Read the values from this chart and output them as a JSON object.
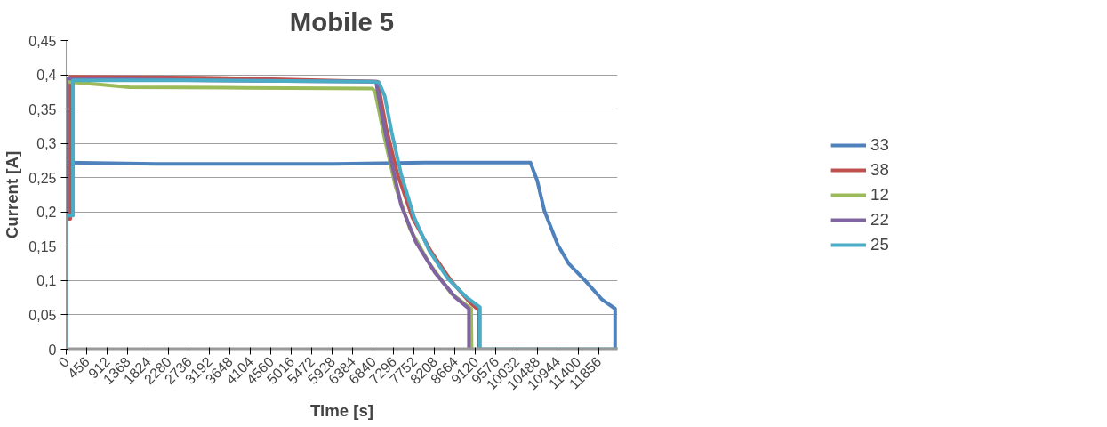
{
  "chart_data": {
    "type": "line",
    "title": "Mobile 5",
    "xlabel": "Time [s]",
    "ylabel": "Current [A]",
    "xlim": [
      0,
      12280
    ],
    "ylim": [
      0,
      0.45
    ],
    "xticks": [
      0,
      456,
      912,
      1368,
      1824,
      2280,
      2736,
      3192,
      3648,
      4104,
      4560,
      5016,
      5472,
      5928,
      6384,
      6840,
      7296,
      7752,
      8208,
      8664,
      9120,
      9576,
      10032,
      10488,
      10944,
      11400,
      11856
    ],
    "yticks": [
      {
        "value": 0,
        "label": "0"
      },
      {
        "value": 0.05,
        "label": "0,05"
      },
      {
        "value": 0.1,
        "label": "0,1"
      },
      {
        "value": 0.15,
        "label": "0,15"
      },
      {
        "value": 0.2,
        "label": "0,2"
      },
      {
        "value": 0.25,
        "label": "0,25"
      },
      {
        "value": 0.3,
        "label": "0,3"
      },
      {
        "value": 0.35,
        "label": "0,35"
      },
      {
        "value": 0.4,
        "label": "0,4"
      },
      {
        "value": 0.45,
        "label": "0,45"
      }
    ],
    "grid": "y",
    "legend": "right",
    "line_style": "solid",
    "marker": "none",
    "series": [
      {
        "name": "33",
        "color": "#4f81bd",
        "x": [
          0,
          2000,
          4000,
          6000,
          8000,
          10340,
          10490,
          10650,
          10950,
          11190,
          11570,
          11940,
          12226,
          12226,
          12280
        ],
        "values": [
          0.272,
          0.27,
          0.27,
          0.27,
          0.272,
          0.272,
          0.246,
          0.202,
          0.152,
          0.125,
          0.099,
          0.072,
          0.059,
          0,
          0
        ]
      },
      {
        "name": "38",
        "color": "#c0504d",
        "x": [
          0,
          90,
          90,
          3000,
          6940,
          6980,
          7130,
          7380,
          7710,
          8120,
          8580,
          8990,
          9200,
          9200
        ],
        "values": [
          0.19,
          0.19,
          0.397,
          0.396,
          0.39,
          0.375,
          0.322,
          0.255,
          0.192,
          0.143,
          0.099,
          0.068,
          0.056,
          0
        ]
      },
      {
        "name": "12",
        "color": "#9bbb59",
        "x": [
          0,
          700,
          1400,
          4000,
          6820,
          6880,
          7090,
          7340,
          7660,
          8090,
          8580,
          9020,
          9030
        ],
        "values": [
          0.39,
          0.386,
          0.382,
          0.381,
          0.38,
          0.375,
          0.308,
          0.236,
          0.175,
          0.125,
          0.081,
          0.059,
          0
        ]
      },
      {
        "name": "22",
        "color": "#8064a2",
        "x": [
          0,
          0,
          3000,
          6900,
          7000,
          7210,
          7460,
          7790,
          8210,
          8660,
          8970,
          8970
        ],
        "values": [
          0.195,
          0.395,
          0.392,
          0.39,
          0.352,
          0.282,
          0.21,
          0.156,
          0.112,
          0.076,
          0.059,
          0
        ]
      },
      {
        "name": "25",
        "color": "#4bacc6",
        "x": [
          0,
          0,
          150,
          150,
          3000,
          6800,
          6965,
          7090,
          7250,
          7460,
          7750,
          8090,
          8500,
          8910,
          9216,
          9216,
          12280
        ],
        "values": [
          0,
          0.195,
          0.195,
          0.392,
          0.392,
          0.39,
          0.389,
          0.37,
          0.316,
          0.255,
          0.192,
          0.143,
          0.103,
          0.076,
          0.061,
          0,
          0
        ]
      }
    ]
  }
}
